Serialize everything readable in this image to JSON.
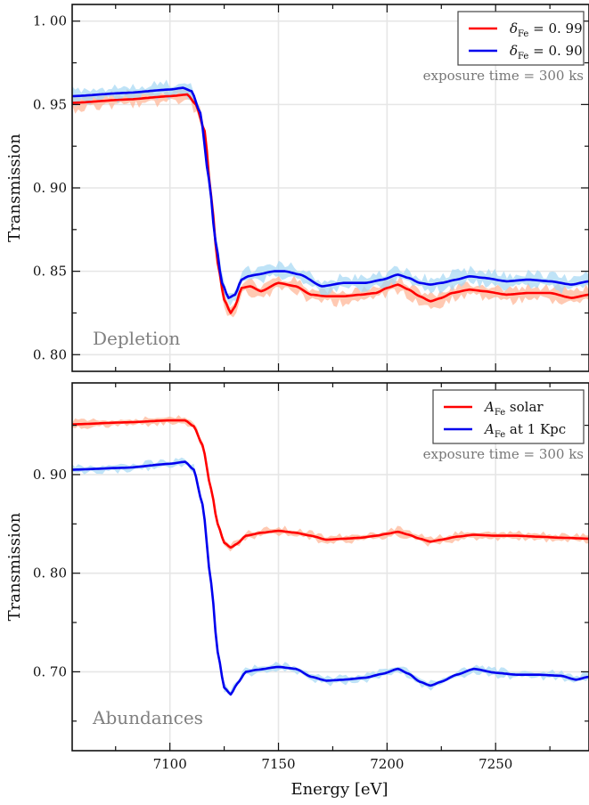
{
  "chart_data": [
    {
      "type": "line",
      "panel_label": "Depletion",
      "ylabel": "Transmission",
      "ylim": [
        0.79,
        1.01
      ],
      "xlim": [
        7055,
        7293
      ],
      "yticks": [
        0.8,
        0.85,
        0.9,
        0.95,
        1.0
      ],
      "ytick_labels": [
        "0. 80",
        "0. 85",
        "0. 90",
        "0. 95",
        "1. 00"
      ],
      "grid": true,
      "legend_position": "top-right",
      "annotation": "exposure time = 300 ks",
      "series": [
        {
          "name": "δ_Fe = 0.99",
          "legend_symbol": "δ",
          "legend_subscript": "Fe",
          "legend_value": "= 0. 99",
          "color": "#ff0000",
          "band_color": "#ffb494",
          "x": [
            7055,
            7080,
            7100,
            7108,
            7112,
            7116,
            7119,
            7122,
            7125,
            7128,
            7130,
            7133,
            7137,
            7142,
            7150,
            7158,
            7165,
            7172,
            7180,
            7188,
            7195,
            7200,
            7205,
            7210,
            7215,
            7220,
            7225,
            7230,
            7238,
            7245,
            7255,
            7265,
            7275,
            7285,
            7293
          ],
          "y": [
            0.951,
            0.953,
            0.955,
            0.956,
            0.95,
            0.934,
            0.895,
            0.855,
            0.833,
            0.825,
            0.829,
            0.84,
            0.841,
            0.838,
            0.843,
            0.841,
            0.836,
            0.835,
            0.835,
            0.836,
            0.837,
            0.84,
            0.842,
            0.839,
            0.835,
            0.832,
            0.834,
            0.837,
            0.839,
            0.838,
            0.836,
            0.837,
            0.837,
            0.834,
            0.836
          ]
        },
        {
          "name": "δ_Fe = 0.90",
          "legend_symbol": "δ",
          "legend_subscript": "Fe",
          "legend_value": "= 0. 90",
          "color": "#0000ee",
          "band_color": "#a6d8f4",
          "x": [
            7055,
            7080,
            7100,
            7106,
            7110,
            7114,
            7118,
            7121,
            7124,
            7127,
            7130,
            7133,
            7136,
            7140,
            7148,
            7153,
            7160,
            7170,
            7180,
            7190,
            7198,
            7205,
            7210,
            7215,
            7220,
            7225,
            7232,
            7238,
            7245,
            7255,
            7265,
            7275,
            7285,
            7293
          ],
          "y": [
            0.955,
            0.957,
            0.959,
            0.96,
            0.958,
            0.945,
            0.905,
            0.868,
            0.843,
            0.834,
            0.836,
            0.845,
            0.847,
            0.848,
            0.85,
            0.85,
            0.848,
            0.841,
            0.843,
            0.843,
            0.845,
            0.848,
            0.846,
            0.843,
            0.842,
            0.843,
            0.845,
            0.847,
            0.846,
            0.844,
            0.845,
            0.844,
            0.842,
            0.844
          ]
        }
      ]
    },
    {
      "type": "line",
      "panel_label": "Abundances",
      "ylabel": "Transmission",
      "xlabel": "Energy   [eV]",
      "ylim": [
        0.62,
        0.993
      ],
      "xlim": [
        7055,
        7293
      ],
      "yticks": [
        0.7,
        0.8,
        0.9
      ],
      "ytick_labels": [
        "0. 70",
        "0. 80",
        "0. 90"
      ],
      "xticks": [
        7100,
        7150,
        7200,
        7250
      ],
      "xtick_labels": [
        "7100",
        "7150",
        "7200",
        "7250"
      ],
      "grid": true,
      "legend_position": "top-right",
      "annotation": "exposure time = 300 ks",
      "series": [
        {
          "name": "A_Fe solar",
          "legend_symbol": "A",
          "legend_subscript": "Fe",
          "legend_value": "solar",
          "color": "#ff0000",
          "band_color": "#ffb494",
          "x": [
            7055,
            7080,
            7100,
            7107,
            7111,
            7115,
            7119,
            7122,
            7125,
            7128,
            7131,
            7135,
            7142,
            7150,
            7158,
            7165,
            7172,
            7180,
            7188,
            7195,
            7200,
            7205,
            7210,
            7215,
            7220,
            7225,
            7232,
            7240,
            7250,
            7260,
            7270,
            7280,
            7293
          ],
          "y": [
            0.951,
            0.953,
            0.955,
            0.955,
            0.949,
            0.93,
            0.885,
            0.85,
            0.831,
            0.826,
            0.83,
            0.838,
            0.841,
            0.843,
            0.841,
            0.838,
            0.834,
            0.835,
            0.836,
            0.838,
            0.84,
            0.842,
            0.839,
            0.835,
            0.832,
            0.834,
            0.837,
            0.839,
            0.838,
            0.838,
            0.837,
            0.836,
            0.835
          ]
        },
        {
          "name": "A_Fe at 1 Kpc",
          "legend_symbol": "A",
          "legend_subscript": "Fe",
          "legend_value": "at 1 Kpc",
          "color": "#0000ee",
          "band_color": "#a6d8f4",
          "x": [
            7055,
            7080,
            7100,
            7107,
            7111,
            7115,
            7119,
            7122,
            7125,
            7128,
            7131,
            7135,
            7140,
            7150,
            7158,
            7165,
            7172,
            7180,
            7190,
            7198,
            7205,
            7210,
            7215,
            7220,
            7225,
            7232,
            7240,
            7250,
            7260,
            7270,
            7280,
            7287,
            7293
          ],
          "y": [
            0.905,
            0.907,
            0.911,
            0.913,
            0.905,
            0.87,
            0.79,
            0.72,
            0.684,
            0.677,
            0.688,
            0.7,
            0.702,
            0.705,
            0.703,
            0.695,
            0.691,
            0.692,
            0.694,
            0.698,
            0.703,
            0.698,
            0.69,
            0.686,
            0.69,
            0.697,
            0.703,
            0.699,
            0.697,
            0.697,
            0.696,
            0.692,
            0.695
          ]
        }
      ]
    }
  ]
}
